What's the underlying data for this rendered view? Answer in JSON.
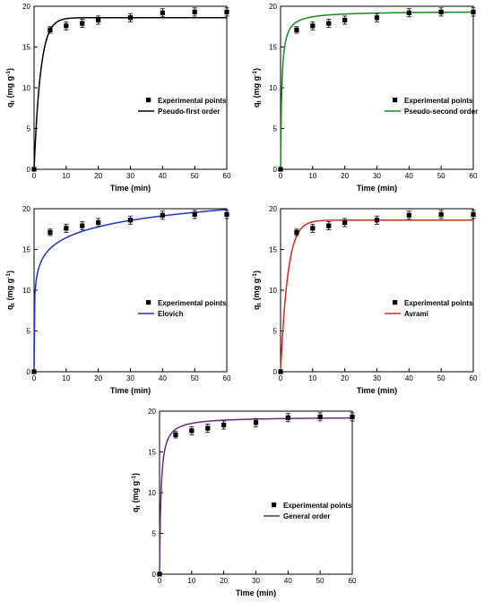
{
  "charts": [
    {
      "type": "scatter",
      "ylabel": "q",
      "ylabel_sub": "t",
      "ylabel_unit": "(mg g",
      "ylabel_sup": "-1",
      "ylabel_close": ")",
      "xlabel": "Time (min)",
      "xlim": [
        0,
        60
      ],
      "ylim": [
        0,
        20
      ],
      "x_ticks": [
        "0",
        "10",
        "20",
        "30",
        "40",
        "50",
        "60"
      ],
      "y_ticks": [
        "0",
        "5",
        "10",
        "15",
        "20"
      ],
      "legend_position": "right-middle",
      "series": [
        {
          "name": "Experimental points",
          "kind": "points",
          "x": [
            0,
            5,
            10,
            15,
            20,
            30,
            40,
            50,
            60
          ],
          "y": [
            0,
            17.1,
            17.6,
            17.9,
            18.3,
            18.6,
            19.2,
            19.3,
            19.3
          ],
          "err": [
            0,
            0.4,
            0.5,
            0.5,
            0.5,
            0.5,
            0.5,
            0.5,
            0.5
          ]
        },
        {
          "name": "Pseudo-first order",
          "kind": "fit",
          "model": "pfo",
          "qe": 18.6,
          "k": 0.5
        }
      ],
      "colors": {
        "fit": "#000000"
      }
    },
    {
      "type": "scatter",
      "ylabel": "q",
      "ylabel_sub": "t",
      "ylabel_unit": "(mg g",
      "ylabel_sup": "-1",
      "ylabel_close": ")",
      "xlabel": "Time (min)",
      "xlim": [
        0,
        60
      ],
      "ylim": [
        0,
        20
      ],
      "x_ticks": [
        "0",
        "10",
        "20",
        "30",
        "40",
        "50",
        "60"
      ],
      "y_ticks": [
        "0",
        "5",
        "10",
        "15",
        "20"
      ],
      "legend_position": "right-middle",
      "series": [
        {
          "name": "Experimental points",
          "kind": "points",
          "x": [
            0,
            5,
            10,
            15,
            20,
            30,
            40,
            50,
            60
          ],
          "y": [
            0,
            17.1,
            17.6,
            17.9,
            18.3,
            18.6,
            19.2,
            19.3,
            19.3
          ],
          "err": [
            0,
            0.4,
            0.5,
            0.5,
            0.5,
            0.5,
            0.5,
            0.5,
            0.5
          ]
        },
        {
          "name": "Pseudo-second order",
          "kind": "fit",
          "model": "pso",
          "qe": 19.4,
          "k": 0.14
        }
      ],
      "colors": {
        "fit": "#1a8a1a"
      }
    },
    {
      "type": "scatter",
      "ylabel": "q",
      "ylabel_sub": "t",
      "ylabel_unit": "(mg g",
      "ylabel_sup": "-1",
      "ylabel_close": ")",
      "xlabel": "Time (min)",
      "xlim": [
        0,
        60
      ],
      "ylim": [
        0,
        20
      ],
      "x_ticks": [
        "0",
        "10",
        "20",
        "30",
        "40",
        "50",
        "60"
      ],
      "y_ticks": [
        "0",
        "5",
        "10",
        "15",
        "20"
      ],
      "legend_position": "right-middle",
      "series": [
        {
          "name": "Experimental points",
          "kind": "points",
          "x": [
            0,
            5,
            10,
            15,
            20,
            30,
            40,
            50,
            60
          ],
          "y": [
            0,
            17.1,
            17.6,
            17.9,
            18.3,
            18.6,
            19.2,
            19.3,
            19.3
          ],
          "err": [
            0,
            0.4,
            0.5,
            0.5,
            0.5,
            0.5,
            0.5,
            0.5,
            0.5
          ]
        },
        {
          "name": "Elovich",
          "kind": "fit",
          "model": "elovich",
          "a": 12.0,
          "b": 1.93
        }
      ],
      "colors": {
        "fit": "#1f35c4"
      }
    },
    {
      "type": "scatter",
      "ylabel": "q",
      "ylabel_sub": "t",
      "ylabel_unit": "(mg g",
      "ylabel_sup": "-1",
      "ylabel_close": ")",
      "xlabel": "Time (min)",
      "xlim": [
        0,
        60
      ],
      "ylim": [
        0,
        20
      ],
      "x_ticks": [
        "0",
        "10",
        "20",
        "30",
        "40",
        "50",
        "60"
      ],
      "y_ticks": [
        "0",
        "5",
        "10",
        "15",
        "20"
      ],
      "legend_position": "right-middle",
      "series": [
        {
          "name": "Experimental points",
          "kind": "points",
          "x": [
            0,
            5,
            10,
            15,
            20,
            30,
            40,
            50,
            60
          ],
          "y": [
            0,
            17.1,
            17.6,
            17.9,
            18.3,
            18.6,
            19.2,
            19.3,
            19.3
          ],
          "err": [
            0,
            0.4,
            0.5,
            0.5,
            0.5,
            0.5,
            0.5,
            0.5,
            0.5
          ]
        },
        {
          "name": "Avrami",
          "kind": "fit",
          "model": "pfo",
          "qe": 18.6,
          "k": 0.45
        }
      ],
      "colors": {
        "fit": "#d42b1e"
      }
    },
    {
      "type": "scatter",
      "ylabel": "q",
      "ylabel_sub": "t",
      "ylabel_unit": "(mg g",
      "ylabel_sup": "-1",
      "ylabel_close": ")",
      "xlabel": "Time (min)",
      "xlim": [
        0,
        60
      ],
      "ylim": [
        0,
        20
      ],
      "x_ticks": [
        "0",
        "10",
        "20",
        "30",
        "40",
        "50",
        "60"
      ],
      "y_ticks": [
        "0",
        "5",
        "10",
        "15",
        "20"
      ],
      "legend_position": "right-middle",
      "series": [
        {
          "name": "Experimental points",
          "kind": "points",
          "x": [
            0,
            5,
            10,
            15,
            20,
            30,
            40,
            50,
            60
          ],
          "y": [
            0,
            17.1,
            17.6,
            17.9,
            18.3,
            18.6,
            19.2,
            19.3,
            19.3
          ],
          "err": [
            0,
            0.4,
            0.5,
            0.5,
            0.5,
            0.5,
            0.5,
            0.5,
            0.5
          ]
        },
        {
          "name": "General order",
          "kind": "fit",
          "model": "pso",
          "qe": 19.3,
          "k": 0.12
        }
      ],
      "colors": {
        "fit": "#6a2a8a"
      }
    }
  ]
}
